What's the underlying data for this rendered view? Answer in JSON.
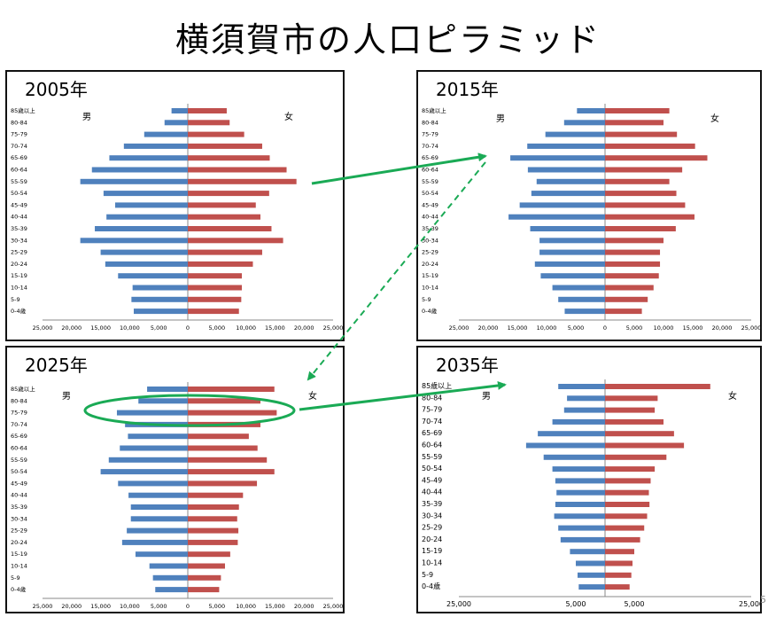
{
  "title": "横須賀市の人口ピラミッド",
  "page_number": "5",
  "colors": {
    "male": "#4F81BD",
    "female": "#C0504D",
    "arrow": "#1AAA55"
  },
  "chart_data": [
    {
      "type": "bar",
      "title": "2005年",
      "male_label": "男",
      "female_label": "女",
      "categories": [
        "85歳以上",
        "80-84",
        "75-79",
        "70-74",
        "65-69",
        "60-64",
        "55-59",
        "50-54",
        "45-49",
        "40-44",
        "35-39",
        "30-34",
        "25-29",
        "20-24",
        "15-19",
        "10-14",
        "5-9",
        "0-4歳"
      ],
      "series": [
        {
          "name": "男",
          "values": [
            2800,
            4000,
            7500,
            11000,
            13500,
            16500,
            18500,
            14500,
            12500,
            14000,
            16000,
            18500,
            15000,
            14200,
            12000,
            9500,
            9700,
            9300
          ]
        },
        {
          "name": "女",
          "values": [
            6700,
            7200,
            9700,
            12800,
            14100,
            17000,
            18700,
            14000,
            11700,
            12500,
            14400,
            16400,
            12800,
            11200,
            9300,
            9300,
            9200,
            8800
          ]
        }
      ],
      "x_ticks": [
        "25,000",
        "20,000",
        "15,000",
        "10,000",
        "5,000",
        "0",
        "5,000",
        "10,000",
        "15,000",
        "20,000",
        "25,000"
      ],
      "xlim": [
        -25000,
        25000
      ]
    },
    {
      "type": "bar",
      "title": "2015年",
      "male_label": "男",
      "female_label": "女",
      "categories": [
        "85歳以上",
        "80-84",
        "75-79",
        "70-74",
        "65-69",
        "60-64",
        "55-59",
        "50-54",
        "45-49",
        "40-44",
        "35-39",
        "30-34",
        "25-29",
        "20-24",
        "15-19",
        "10-14",
        "5-9",
        "0-4歳"
      ],
      "series": [
        {
          "name": "男",
          "values": [
            4800,
            7000,
            10200,
            13300,
            16200,
            13200,
            11700,
            12600,
            14600,
            16500,
            12800,
            11200,
            11200,
            12000,
            11000,
            9000,
            8000,
            6900
          ]
        },
        {
          "name": "女",
          "values": [
            11000,
            10000,
            12300,
            15400,
            17500,
            13200,
            11000,
            12200,
            13700,
            15300,
            12100,
            10000,
            9400,
            9400,
            9200,
            8300,
            7300,
            6300
          ]
        }
      ],
      "x_ticks": [
        "25,000",
        "20,000",
        "15,000",
        "10,000",
        "5,000",
        "0",
        "5,000",
        "10,000",
        "15,000",
        "20,000",
        "25,000"
      ],
      "xlim": [
        -25000,
        25000
      ]
    },
    {
      "type": "bar",
      "title": "2025年",
      "male_label": "男",
      "female_label": "女",
      "categories": [
        "85歳以上",
        "80-84",
        "75-79",
        "70-74",
        "65-69",
        "60-64",
        "55-59",
        "50-54",
        "45-49",
        "40-44",
        "35-39",
        "30-34",
        "25-29",
        "20-24",
        "15-19",
        "10-14",
        "5-9",
        "0-4歳"
      ],
      "series": [
        {
          "name": "男",
          "values": [
            7000,
            8500,
            12200,
            10800,
            10300,
            11700,
            13600,
            15000,
            12000,
            10200,
            9800,
            9800,
            10500,
            11300,
            9000,
            6600,
            6000,
            5600
          ]
        },
        {
          "name": "女",
          "values": [
            14900,
            12500,
            15300,
            12500,
            10500,
            12000,
            13600,
            14900,
            11900,
            9500,
            8800,
            8500,
            8700,
            8600,
            7300,
            6400,
            5700,
            5400
          ]
        }
      ],
      "x_ticks": [
        "25,000",
        "20,000",
        "15,000",
        "10,000",
        "5,000",
        "0",
        "5,000",
        "10,000",
        "15,000",
        "20,000",
        "25,000"
      ],
      "xlim": [
        -25000,
        25000
      ]
    },
    {
      "type": "bar",
      "title": "2035年",
      "male_label": "男",
      "female_label": "女",
      "categories": [
        "85歳以上",
        "80-84",
        "75-79",
        "70-74",
        "65-69",
        "60-64",
        "55-59",
        "50-54",
        "45-49",
        "40-44",
        "35-39",
        "30-34",
        "25-29",
        "20-24",
        "15-19",
        "10-14",
        "5-9",
        "0-4歳"
      ],
      "series": [
        {
          "name": "男",
          "values": [
            8000,
            6500,
            7000,
            9000,
            11500,
            13500,
            10500,
            9000,
            8500,
            8300,
            8500,
            8700,
            8000,
            7600,
            6000,
            5000,
            4700,
            4500
          ]
        },
        {
          "name": "女",
          "values": [
            18000,
            9000,
            8500,
            10000,
            11800,
            13500,
            10500,
            8500,
            7800,
            7500,
            7600,
            7200,
            6700,
            6000,
            5000,
            4700,
            4500,
            4200
          ]
        }
      ],
      "x_ticks": [
        "25,000",
        "5,000",
        "5,000",
        "25,000"
      ],
      "xlim": [
        -25000,
        25000
      ]
    }
  ]
}
